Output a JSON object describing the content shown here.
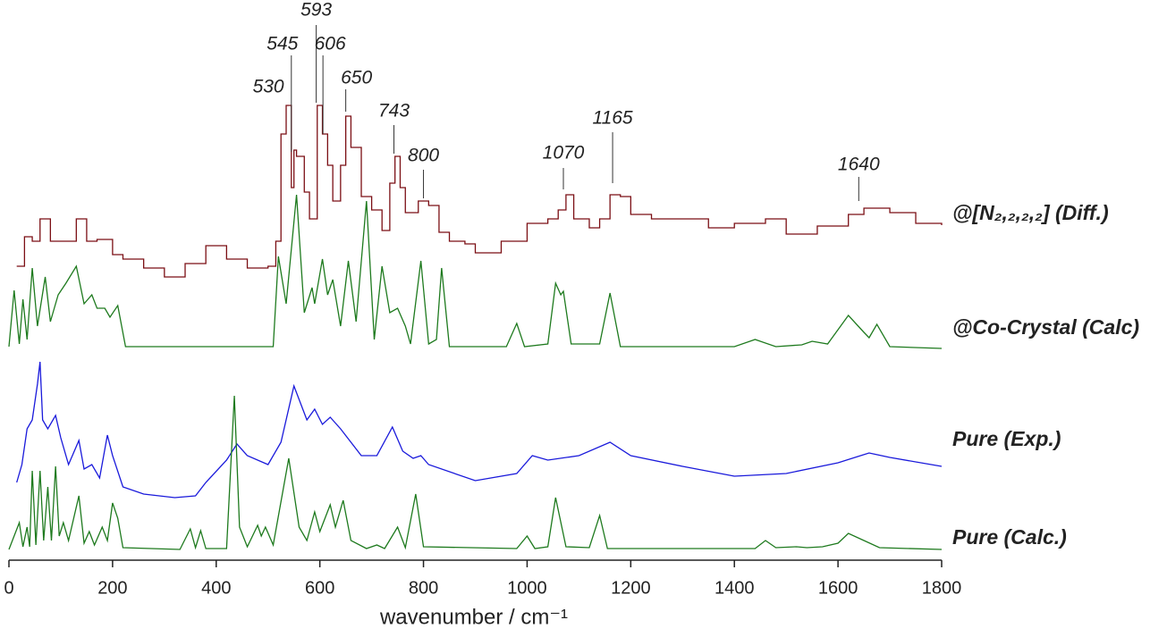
{
  "chart_data": {
    "type": "line",
    "xlabel": "wavenumber / cm⁻¹",
    "xlim": [
      0,
      1800
    ],
    "xticks": [
      0,
      200,
      400,
      600,
      800,
      1000,
      1200,
      1400,
      1600,
      1800
    ],
    "ylim": [
      0,
      627
    ],
    "peak_labels": [
      530,
      545,
      593,
      606,
      650,
      743,
      800,
      1070,
      1165,
      1640
    ],
    "series": [
      {
        "name": "@[N₂,₂,₂,₂] (Diff.)",
        "color": "#7b0f14",
        "drawstyle": "steps",
        "x": [
          15,
          30,
          45,
          60,
          80,
          100,
          130,
          150,
          170,
          200,
          220,
          260,
          300,
          340,
          380,
          420,
          460,
          500,
          515,
          525,
          535,
          545,
          550,
          555,
          570,
          580,
          595,
          605,
          615,
          625,
          640,
          650,
          660,
          680,
          700,
          720,
          735,
          745,
          755,
          765,
          790,
          810,
          830,
          850,
          880,
          900,
          950,
          1000,
          1040,
          1060,
          1075,
          1090,
          1120,
          1140,
          1160,
          1180,
          1200,
          1240,
          1300,
          1350,
          1400,
          1460,
          1500,
          1560,
          1620,
          1650,
          1700,
          1750,
          1800
        ],
        "values": [
          329,
          362,
          357,
          382,
          357,
          357,
          382,
          357,
          359,
          342,
          337,
          327,
          317,
          332,
          352,
          337,
          327,
          329,
          357,
          477,
          509,
          417,
          459,
          452,
          412,
          382,
          509,
          477,
          442,
          402,
          442,
          497,
          462,
          407,
          392,
          369,
          422,
          452,
          417,
          389,
          402,
          397,
          367,
          357,
          354,
          344,
          357,
          377,
          382,
          392,
          409,
          382,
          372,
          382,
          409,
          407,
          387,
          382,
          382,
          372,
          377,
          382,
          365,
          374,
          387,
          394,
          389,
          377,
          375
        ]
      },
      {
        "name": "@Co-Crystal (Calc)",
        "color": "#1e7a1e",
        "x": [
          0,
          10,
          20,
          27,
          35,
          45,
          55,
          70,
          80,
          95,
          110,
          130,
          145,
          160,
          170,
          185,
          195,
          210,
          225,
          510,
          520,
          535,
          555,
          570,
          585,
          590,
          605,
          615,
          625,
          640,
          655,
          670,
          690,
          705,
          720,
          735,
          750,
          765,
          775,
          795,
          810,
          825,
          835,
          850,
          960,
          980,
          995,
          1040,
          1055,
          1065,
          1070,
          1085,
          1140,
          1160,
          1180,
          1400,
          1440,
          1480,
          1530,
          1550,
          1580,
          1620,
          1650,
          1660,
          1675,
          1700,
          1800
        ],
        "values": [
          239,
          302,
          242,
          292,
          247,
          327,
          262,
          317,
          267,
          297,
          310,
          329,
          287,
          297,
          282,
          282,
          272,
          285,
          239,
          239,
          340,
          287,
          409,
          277,
          305,
          287,
          337,
          297,
          314,
          262,
          335,
          267,
          402,
          247,
          329,
          277,
          282,
          262,
          242,
          335,
          242,
          247,
          327,
          239,
          239,
          265,
          239,
          242,
          310,
          297,
          301,
          242,
          242,
          299,
          239,
          239,
          247,
          239,
          241,
          245,
          242,
          274,
          255,
          249,
          264,
          239,
          237
        ]
      },
      {
        "name": "Pure (Exp.)",
        "color": "#1a1adb",
        "x": [
          15,
          25,
          35,
          45,
          55,
          60,
          65,
          75,
          90,
          100,
          115,
          135,
          145,
          160,
          175,
          190,
          200,
          220,
          260,
          320,
          360,
          380,
          420,
          440,
          460,
          500,
          525,
          550,
          575,
          590,
          605,
          620,
          640,
          680,
          710,
          740,
          760,
          780,
          795,
          810,
          900,
          980,
          1010,
          1040,
          1100,
          1160,
          1200,
          1300,
          1400,
          1500,
          1600,
          1660,
          1700,
          1780,
          1800
        ],
        "values": [
          87,
          107,
          147,
          157,
          197,
          222,
          157,
          147,
          162,
          137,
          107,
          134,
          102,
          107,
          92,
          140,
          117,
          82,
          74,
          70,
          72,
          87,
          112,
          130,
          117,
          107,
          132,
          195,
          157,
          169,
          152,
          160,
          147,
          117,
          117,
          149,
          122,
          114,
          117,
          107,
          89,
          97,
          117,
          112,
          117,
          132,
          117,
          105,
          94,
          97,
          109,
          120,
          115,
          107,
          105
        ]
      },
      {
        "name": "Pure (Calc.)",
        "color": "#1e7a1e",
        "x": [
          0,
          20,
          27,
          35,
          40,
          45,
          52,
          60,
          67,
          75,
          82,
          90,
          97,
          105,
          115,
          135,
          145,
          155,
          165,
          180,
          190,
          200,
          210,
          220,
          330,
          350,
          360,
          370,
          380,
          420,
          435,
          445,
          460,
          480,
          487,
          495,
          510,
          540,
          560,
          575,
          590,
          600,
          620,
          630,
          645,
          660,
          690,
          710,
          725,
          750,
          765,
          785,
          800,
          980,
          1000,
          1015,
          1040,
          1055,
          1075,
          1120,
          1140,
          1155,
          1440,
          1460,
          1480,
          1520,
          1540,
          1570,
          1600,
          1620,
          1650,
          1680,
          1800
        ],
        "values": [
          12,
          42,
          15,
          37,
          15,
          100,
          17,
          100,
          22,
          82,
          22,
          105,
          27,
          42,
          22,
          72,
          19,
          32,
          17,
          37,
          22,
          64,
          47,
          14,
          12,
          35,
          14,
          33,
          13,
          13,
          184,
          37,
          15,
          39,
          27,
          37,
          17,
          114,
          37,
          22,
          54,
          32,
          62,
          37,
          67,
          22,
          13,
          17,
          13,
          37,
          14,
          74,
          15,
          13,
          27,
          13,
          15,
          70,
          15,
          14,
          50,
          13,
          13,
          22,
          14,
          15,
          14,
          15,
          19,
          30,
          22,
          14,
          12
        ]
      }
    ]
  }
}
